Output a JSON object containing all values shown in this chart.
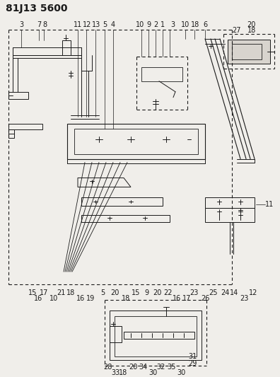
{
  "title": "81J13 5600",
  "bg_color": "#f0eeea",
  "line_color": "#1a1a1a",
  "title_fontsize": 10,
  "label_fontsize": 7,
  "dashes": [
    4,
    3
  ]
}
